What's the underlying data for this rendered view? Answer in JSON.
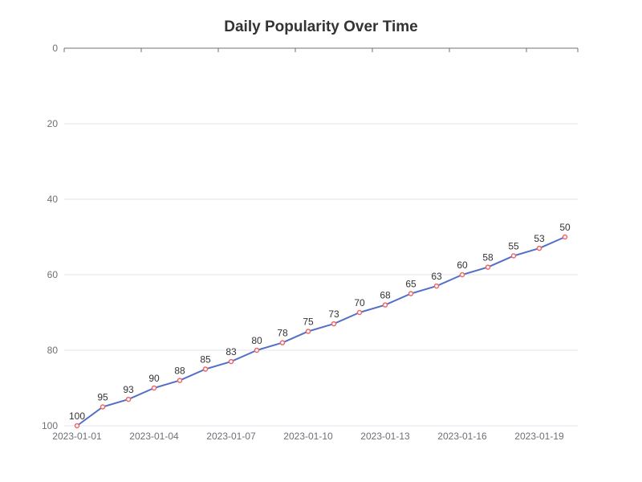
{
  "chart_data": {
    "type": "line",
    "title": "Daily Popularity Over Time",
    "xlabel": "",
    "ylabel": "",
    "x": [
      "2023-01-01",
      "2023-01-02",
      "2023-01-03",
      "2023-01-04",
      "2023-01-05",
      "2023-01-06",
      "2023-01-07",
      "2023-01-08",
      "2023-01-09",
      "2023-01-10",
      "2023-01-11",
      "2023-01-12",
      "2023-01-13",
      "2023-01-14",
      "2023-01-15",
      "2023-01-16",
      "2023-01-17",
      "2023-01-18",
      "2023-01-19",
      "2023-01-20"
    ],
    "series": [
      {
        "values": [
          100,
          95,
          93,
          90,
          88,
          85,
          83,
          80,
          78,
          75,
          73,
          70,
          68,
          65,
          63,
          60,
          58,
          55,
          53,
          50
        ]
      }
    ],
    "x_tick_labels": [
      "2023-01-01",
      "2023-01-04",
      "2023-01-07",
      "2023-01-10",
      "2023-01-13",
      "2023-01-16",
      "2023-01-19"
    ],
    "y_ticks": [
      0,
      20,
      40,
      60,
      80,
      100
    ],
    "ylim": [
      0,
      100
    ],
    "y_inverted": true,
    "x_axis_position": "top",
    "grid": true,
    "legend": "none",
    "colors": {
      "line": "#5470c6",
      "marker": "#ee6666",
      "grid": "#e0e6f1",
      "axis": "#6e7079",
      "tick_text": "#6e7079",
      "label_text": "#333333",
      "title": "#333333"
    }
  }
}
